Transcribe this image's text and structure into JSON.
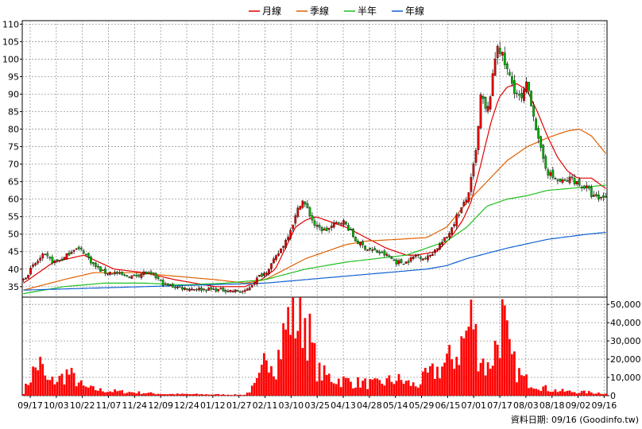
{
  "chart_data": {
    "type": "candlestick-volume",
    "source_label": "資料日期: 09/16 (Goodinfo.tw)",
    "legend": [
      {
        "name": "月線",
        "color": "#e00000"
      },
      {
        "name": "季線",
        "color": "#e06000"
      },
      {
        "name": "半年",
        "color": "#20c020"
      },
      {
        "name": "年線",
        "color": "#1060d0"
      }
    ],
    "price_axis": {
      "min": 32,
      "max": 111,
      "ticks": [
        35,
        40,
        45,
        50,
        55,
        60,
        65,
        70,
        75,
        80,
        85,
        90,
        95,
        100,
        105,
        110
      ],
      "side": "left"
    },
    "volume_axis": {
      "min": 0,
      "max": 54000,
      "ticks": [
        0,
        10000,
        20000,
        30000,
        40000,
        50000
      ],
      "tick_labels": [
        "0",
        "10,000",
        "20,000",
        "30,000",
        "40,000",
        "50,000"
      ],
      "side": "right"
    },
    "x_labels": [
      "09/17",
      "10/03",
      "10/22",
      "11/07",
      "11/24",
      "12/09",
      "12/24",
      "01/12",
      "01/27",
      "02/11",
      "03/10",
      "03/25",
      "04/13",
      "04/28",
      "05/14",
      "05/29",
      "06/15",
      "07/01",
      "07/17",
      "08/03",
      "08/18",
      "09/02",
      "09/16"
    ],
    "bars": 243,
    "candle_colors": {
      "up": "#e00000",
      "down": "#00b000"
    },
    "volume_color": "#ff0000",
    "close_anchors": [
      [
        0,
        37
      ],
      [
        5,
        41
      ],
      [
        10,
        44
      ],
      [
        15,
        42
      ],
      [
        20,
        43
      ],
      [
        25,
        46
      ],
      [
        30,
        45
      ],
      [
        35,
        41
      ],
      [
        40,
        39
      ],
      [
        45,
        39
      ],
      [
        50,
        38
      ],
      [
        55,
        38
      ],
      [
        60,
        39
      ],
      [
        65,
        38
      ],
      [
        70,
        35.5
      ],
      [
        80,
        34.5
      ],
      [
        100,
        34
      ],
      [
        110,
        33.5
      ],
      [
        117,
        38
      ],
      [
        120,
        39
      ],
      [
        125,
        43
      ],
      [
        130,
        48
      ],
      [
        135,
        55
      ],
      [
        138,
        60
      ],
      [
        141,
        57
      ],
      [
        145,
        52
      ],
      [
        150,
        51
      ],
      [
        155,
        53
      ],
      [
        158,
        54
      ],
      [
        161,
        52
      ],
      [
        165,
        48
      ],
      [
        170,
        46
      ],
      [
        175,
        45
      ],
      [
        180,
        44
      ],
      [
        185,
        42
      ],
      [
        190,
        42
      ],
      [
        195,
        44
      ],
      [
        200,
        43
      ],
      [
        205,
        46
      ],
      [
        210,
        49
      ],
      [
        215,
        55
      ],
      [
        220,
        60
      ],
      [
        222,
        65
      ],
      [
        225,
        75
      ],
      [
        227,
        90
      ],
      [
        230,
        84
      ],
      [
        233,
        95
      ],
      [
        235,
        105
      ],
      [
        238,
        100
      ],
      [
        241,
        95
      ],
      [
        244,
        91
      ],
      [
        247,
        88
      ],
      [
        250,
        93
      ],
      [
        253,
        85
      ],
      [
        256,
        75
      ],
      [
        260,
        68
      ],
      [
        263,
        66
      ],
      [
        266,
        65
      ],
      [
        269,
        65
      ],
      [
        272,
        66
      ],
      [
        276,
        64
      ],
      [
        280,
        63
      ],
      [
        282,
        61
      ],
      [
        285,
        60
      ],
      [
        289,
        61
      ]
    ],
    "ma_month": [
      [
        0,
        36
      ],
      [
        15,
        42
      ],
      [
        30,
        44
      ],
      [
        45,
        40
      ],
      [
        60,
        39
      ],
      [
        75,
        37
      ],
      [
        95,
        35
      ],
      [
        110,
        35
      ],
      [
        118,
        37
      ],
      [
        125,
        40
      ],
      [
        130,
        46
      ],
      [
        135,
        52
      ],
      [
        140,
        54
      ],
      [
        145,
        55
      ],
      [
        150,
        54
      ],
      [
        160,
        52
      ],
      [
        170,
        49
      ],
      [
        180,
        46
      ],
      [
        190,
        44
      ],
      [
        195,
        44
      ],
      [
        205,
        45
      ],
      [
        212,
        49
      ],
      [
        218,
        54
      ],
      [
        222,
        59
      ],
      [
        227,
        70
      ],
      [
        232,
        82
      ],
      [
        236,
        89
      ],
      [
        240,
        92
      ],
      [
        245,
        93
      ],
      [
        250,
        91
      ],
      [
        255,
        85
      ],
      [
        260,
        78
      ],
      [
        265,
        72
      ],
      [
        270,
        68
      ],
      [
        275,
        66
      ],
      [
        282,
        66
      ],
      [
        289,
        63
      ]
    ],
    "ma_quarter": [
      [
        0,
        34
      ],
      [
        20,
        37
      ],
      [
        35,
        39
      ],
      [
        55,
        39
      ],
      [
        75,
        38
      ],
      [
        95,
        37
      ],
      [
        110,
        36
      ],
      [
        120,
        37
      ],
      [
        130,
        40
      ],
      [
        140,
        43
      ],
      [
        150,
        45
      ],
      [
        160,
        47
      ],
      [
        170,
        48
      ],
      [
        185,
        48.5
      ],
      [
        200,
        49
      ],
      [
        210,
        52
      ],
      [
        220,
        59
      ],
      [
        230,
        65
      ],
      [
        240,
        71
      ],
      [
        250,
        75
      ],
      [
        260,
        77.5
      ],
      [
        270,
        79.5
      ],
      [
        276,
        80
      ],
      [
        282,
        78
      ],
      [
        289,
        73
      ]
    ],
    "ma_half": [
      [
        0,
        33
      ],
      [
        20,
        35
      ],
      [
        40,
        36
      ],
      [
        60,
        36
      ],
      [
        80,
        35.5
      ],
      [
        100,
        36
      ],
      [
        120,
        37
      ],
      [
        140,
        40
      ],
      [
        160,
        42
      ],
      [
        175,
        43
      ],
      [
        190,
        44
      ],
      [
        200,
        46
      ],
      [
        210,
        48
      ],
      [
        220,
        52
      ],
      [
        230,
        58
      ],
      [
        240,
        60
      ],
      [
        250,
        61
      ],
      [
        260,
        62.5
      ],
      [
        270,
        63
      ],
      [
        280,
        63.5
      ],
      [
        289,
        64
      ]
    ],
    "ma_year": [
      [
        0,
        34
      ],
      [
        30,
        34.5
      ],
      [
        60,
        35
      ],
      [
        90,
        35.5
      ],
      [
        120,
        36
      ],
      [
        150,
        37.5
      ],
      [
        180,
        39
      ],
      [
        200,
        40
      ],
      [
        210,
        41
      ],
      [
        220,
        43
      ],
      [
        240,
        46
      ],
      [
        260,
        48.5
      ],
      [
        280,
        50
      ],
      [
        289,
        50.5
      ]
    ],
    "volume_profile": [
      [
        0,
        2000
      ],
      [
        5,
        15000
      ],
      [
        8,
        20000
      ],
      [
        12,
        8000
      ],
      [
        18,
        10000
      ],
      [
        22,
        14000
      ],
      [
        30,
        5000
      ],
      [
        40,
        3000
      ],
      [
        55,
        2000
      ],
      [
        70,
        1000
      ],
      [
        90,
        800
      ],
      [
        110,
        500
      ],
      [
        115,
        6000
      ],
      [
        118,
        12000
      ],
      [
        121,
        30000
      ],
      [
        125,
        18000
      ],
      [
        130,
        40000
      ],
      [
        133,
        52000
      ],
      [
        136,
        45000
      ],
      [
        140,
        48000
      ],
      [
        143,
        30000
      ],
      [
        146,
        15000
      ],
      [
        150,
        12000
      ],
      [
        155,
        10000
      ],
      [
        165,
        8000
      ],
      [
        175,
        7000
      ],
      [
        185,
        10000
      ],
      [
        195,
        6000
      ],
      [
        200,
        12000
      ],
      [
        205,
        15000
      ],
      [
        210,
        20000
      ],
      [
        215,
        25000
      ],
      [
        220,
        38000
      ],
      [
        223,
        50000
      ],
      [
        225,
        30000
      ],
      [
        228,
        22000
      ],
      [
        230,
        15000
      ],
      [
        235,
        32000
      ],
      [
        238,
        48000
      ],
      [
        241,
        25000
      ],
      [
        245,
        15000
      ],
      [
        248,
        10000
      ],
      [
        252,
        8000
      ],
      [
        256,
        6000
      ],
      [
        260,
        4000
      ],
      [
        265,
        3000
      ],
      [
        270,
        2500
      ],
      [
        280,
        2000
      ],
      [
        289,
        1500
      ]
    ]
  }
}
